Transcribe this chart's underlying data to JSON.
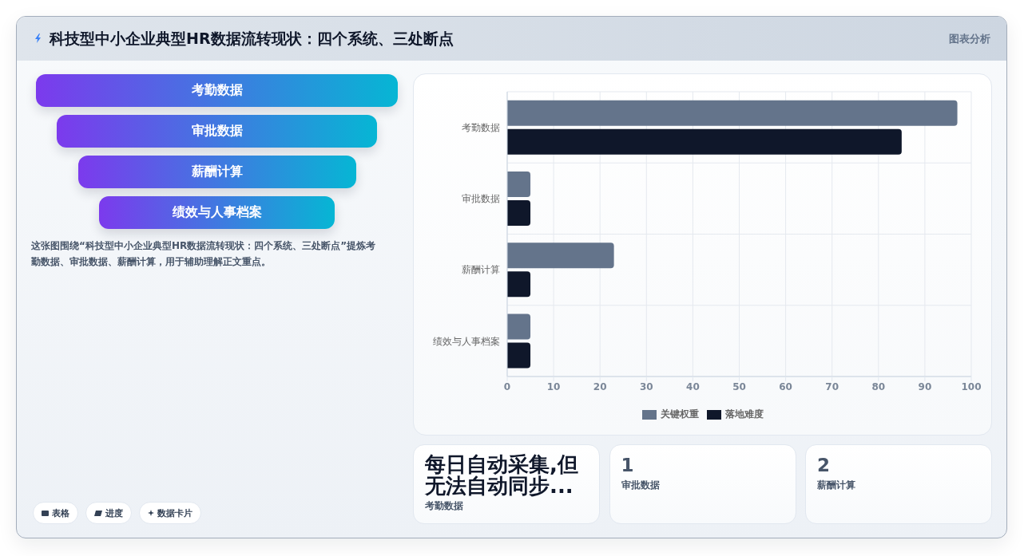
{
  "chart_data": [
    {
      "type": "other",
      "title": "科技型中小企业典型HR数据流转现状：四个系统、三处断点",
      "categories": [
        "考勤数据",
        "审批数据",
        "薪酬计算",
        "绩效与人事档案"
      ],
      "annotations": [
        "图表分析",
        "这张图围绕“科技型中小企业典型HR数据流转现状：四个系统、三处断点”提炼考勤数据、审批数据、薪酬计算，用于辅助理解正文重点。",
        "表格",
        "进度",
        "数据卡片"
      ]
    },
    {
      "type": "bar",
      "orientation": "horizontal",
      "categories": [
        "考勤数据",
        "审批数据",
        "薪酬计算",
        "绩效与人事档案"
      ],
      "series": [
        {
          "name": "关键权重",
          "color": "#64748b",
          "values": [
            97,
            5,
            23,
            5
          ]
        },
        {
          "name": "落地难度",
          "color": "#0f172a",
          "values": [
            85,
            5,
            5,
            5
          ]
        }
      ],
      "xlim": [
        0,
        100
      ],
      "xticks": [
        0,
        10,
        20,
        30,
        40,
        50,
        60,
        70,
        80,
        90,
        100
      ],
      "grid": true,
      "legend": "bottom"
    },
    {
      "type": "other",
      "categories": [
        "考勤数据",
        "审批数据",
        "薪酬计算"
      ],
      "value_labels": [
        "每日自动采集,但无法自动同步...",
        "1",
        "2"
      ]
    }
  ]
}
